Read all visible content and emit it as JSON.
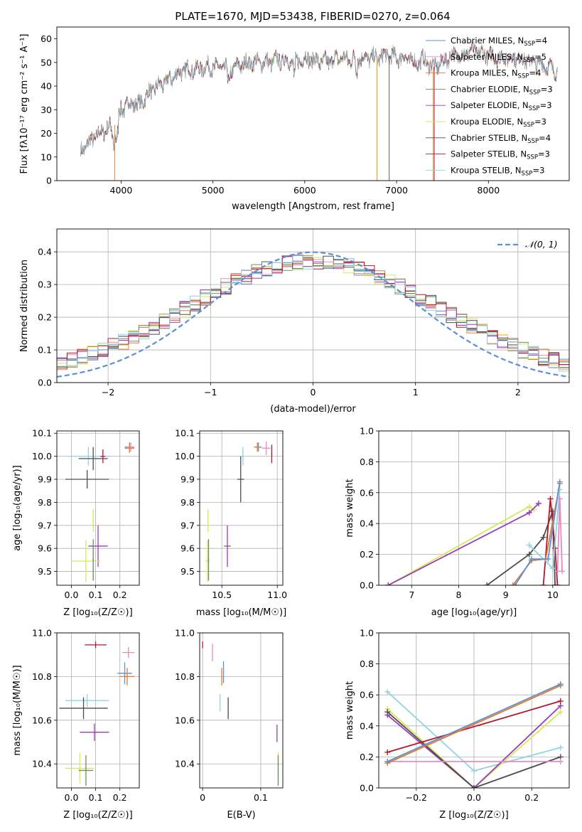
{
  "figure": {
    "title": "PLATE=1670, MJD=53438, FIBERID=0270, z=0.064"
  },
  "chart_data": [
    {
      "id": "spectrum",
      "type": "line",
      "title": "PLATE=1670, MJD=53438, FIBERID=0270, z=0.064",
      "xlabel": "wavelength [Angstrom, rest frame]",
      "ylabel": "Flux [fλ10⁻¹⁷ erg cm⁻² s⁻¹ A⁻¹]",
      "xlim": [
        3300,
        8880
      ],
      "ylim": [
        0,
        65
      ],
      "xticks": [
        4000,
        5000,
        6000,
        7000,
        8000
      ],
      "yticks": [
        0,
        10,
        20,
        30,
        40,
        50,
        60
      ],
      "grid": false,
      "legend_position": "top-right",
      "series": [
        {
          "name": "Chabrier MILES, N_SSP=4",
          "color": "#5b8fd6"
        },
        {
          "name": "Salpeter MILES, N_SSP=5",
          "color": "#e78ac3"
        },
        {
          "name": "Kroupa MILES, N_SSP=4",
          "color": "#e07b2e"
        },
        {
          "name": "Chabrier ELODIE, N_SSP=3",
          "color": "#6b8f5e"
        },
        {
          "name": "Salpeter ELODIE, N_SSP=3",
          "color": "#9b3cb7"
        },
        {
          "name": "Kroupa ELODIE, N_SSP=3",
          "color": "#d6e85a"
        },
        {
          "name": "Chabrier STELIB, N_SSP=4",
          "color": "#4d4d4d"
        },
        {
          "name": "Salpeter STELIB, N_SSP=3",
          "color": "#b2182b"
        },
        {
          "name": "Kroupa STELIB, N_SSP=3",
          "color": "#8fd4e0"
        }
      ],
      "continuum_x": [
        3550,
        3700,
        3850,
        3950,
        4000,
        4100,
        4200,
        4300,
        4400,
        4500,
        4600,
        4700,
        4800,
        4900,
        5000,
        5100,
        5200,
        5300,
        5400,
        5500,
        5600,
        5700,
        5800,
        5900,
        6000,
        6100,
        6200,
        6300,
        6400,
        6500,
        6600,
        6700,
        6800,
        6900,
        7000,
        7100,
        7200,
        7300,
        7400,
        7500,
        7600,
        7700,
        7800,
        7900,
        8000,
        8100,
        8200,
        8300,
        8400,
        8500,
        8600,
        8700
      ],
      "continuum_y": [
        12,
        18,
        22,
        24,
        30,
        33,
        32,
        37,
        40,
        42,
        45,
        47,
        47,
        48,
        48,
        48,
        47,
        49,
        50,
        50,
        50,
        51,
        51,
        50,
        52,
        51,
        50,
        51,
        52,
        51,
        52,
        52,
        52,
        53,
        52,
        52,
        50,
        51,
        48,
        50,
        53,
        53,
        55,
        54,
        53,
        52,
        52,
        52,
        51,
        50,
        49,
        47
      ]
    },
    {
      "id": "residuals",
      "type": "step",
      "xlabel": "(data-model)/error",
      "ylabel": "Normed distribution",
      "xlim": [
        -2.5,
        2.5
      ],
      "ylim": [
        0,
        0.47
      ],
      "xticks": [
        -2,
        -1,
        0,
        1,
        2
      ],
      "xtick_labels": [
        "−2",
        "−1",
        "0",
        "1",
        "2"
      ],
      "yticks": [
        0.0,
        0.1,
        0.2,
        0.3,
        0.4
      ],
      "grid": true,
      "legend_position": "top-right",
      "reference_curve": {
        "name": "𝒩(0, 1)",
        "mean": 0,
        "sigma": 1,
        "color": "#5b8fd6",
        "style": "dashed"
      },
      "bin_width": 0.1
    },
    {
      "id": "age-vs-Z",
      "type": "errorbar",
      "xlabel": "Z [log₁₀(Z/Z☉)]",
      "ylabel": "age  [log₁₀(age/yr)]",
      "xlim": [
        -0.06,
        0.28
      ],
      "ylim": [
        9.44,
        10.11
      ],
      "xticks": [
        0.0,
        0.1,
        0.2
      ],
      "xtick_labels": [
        "0.0",
        "0.1",
        "0.2"
      ],
      "yticks": [
        9.5,
        9.6,
        9.7,
        9.8,
        9.9,
        10.0,
        10.1
      ],
      "grid": true,
      "points": [
        {
          "color": "#8fd4e0",
          "x": 0.07,
          "xerr": 0.09,
          "y": 10.0,
          "yerr": 0.04
        },
        {
          "color": "#4d4d4d",
          "x": 0.09,
          "xerr": 0.06,
          "y": 9.99,
          "yerr": 0.05
        },
        {
          "color": "#b2182b",
          "x": 0.13,
          "xerr": 0.01,
          "y": 10.0,
          "yerr": 0.03
        },
        {
          "color": "#5b8fd6",
          "x": 0.24,
          "xerr": 0.02,
          "y": 10.04,
          "yerr": 0.02
        },
        {
          "color": "#e78ac3",
          "x": 0.245,
          "xerr": 0.015,
          "y": 10.04,
          "yerr": 0.02
        },
        {
          "color": "#e07b2e",
          "x": 0.24,
          "xerr": 0.02,
          "y": 10.035,
          "yerr": 0.02
        },
        {
          "color": "#4d4d4d",
          "x": 0.065,
          "xerr": 0.09,
          "y": 9.9,
          "yerr": 0.04
        },
        {
          "color": "#d6e85a",
          "x": 0.09,
          "xerr": 0.003,
          "y": 9.72,
          "yerr": 0.05
        },
        {
          "color": "#9b3cb7",
          "x": 0.11,
          "xerr": 0.04,
          "y": 9.61,
          "yerr": 0.09
        },
        {
          "color": "#d6e85a",
          "x": 0.06,
          "xerr": 0.06,
          "y": 9.545,
          "yerr": 0.09
        },
        {
          "color": "#6b8f5e",
          "x": 0.09,
          "xerr": 0.003,
          "y": 9.55,
          "yerr": 0.09
        }
      ]
    },
    {
      "id": "age-vs-mass",
      "type": "errorbar",
      "xlabel": "mass [log₁₀(M/M☉)]",
      "ylabel": "",
      "xlim": [
        10.3,
        11.05
      ],
      "ylim": [
        9.44,
        10.11
      ],
      "xticks": [
        10.5,
        11.0
      ],
      "xtick_labels": [
        "10.5",
        "11.0"
      ],
      "yticks": [
        9.5,
        9.6,
        9.7,
        9.8,
        9.9,
        10.0,
        10.1
      ],
      "grid": true,
      "points": [
        {
          "color": "#8fd4e0",
          "x": 10.69,
          "xerr": 0.01,
          "y": 10.0,
          "yerr": 0.04
        },
        {
          "color": "#4d4d4d",
          "x": 10.67,
          "xerr": 0.03,
          "y": 9.9,
          "yerr": 0.1
        },
        {
          "color": "#b2182b",
          "x": 10.95,
          "xerr": 0.005,
          "y": 10.01,
          "yerr": 0.04
        },
        {
          "color": "#5b8fd6",
          "x": 10.83,
          "xerr": 0.03,
          "y": 10.04,
          "yerr": 0.02
        },
        {
          "color": "#e78ac3",
          "x": 10.9,
          "xerr": 0.04,
          "y": 10.035,
          "yerr": 0.03
        },
        {
          "color": "#e07b2e",
          "x": 10.82,
          "xerr": 0.03,
          "y": 10.04,
          "yerr": 0.02
        },
        {
          "color": "#d6e85a",
          "x": 10.375,
          "xerr": 0.005,
          "y": 9.72,
          "yerr": 0.05
        },
        {
          "color": "#9b3cb7",
          "x": 10.55,
          "xerr": 0.03,
          "y": 9.61,
          "yerr": 0.09
        },
        {
          "color": "#d6e85a",
          "x": 10.37,
          "xerr": 0.02,
          "y": 9.545,
          "yerr": 0.09
        },
        {
          "color": "#6b8f5e",
          "x": 10.38,
          "xerr": 0.005,
          "y": 9.55,
          "yerr": 0.09
        }
      ]
    },
    {
      "id": "weight-vs-age",
      "type": "line",
      "xlabel": "age  [log₁₀(age/yr)]",
      "ylabel": "mass weight",
      "xlim": [
        6.3,
        10.35
      ],
      "ylim": [
        0,
        1.0
      ],
      "xticks": [
        7,
        8,
        9,
        10
      ],
      "yticks": [
        0.0,
        0.2,
        0.4,
        0.6,
        0.8,
        1.0
      ],
      "grid": true,
      "series": [
        {
          "color": "#d6e85a",
          "x": [
            6.5,
            9.5,
            9.6
          ],
          "y": [
            0.0,
            0.51,
            0.49
          ]
        },
        {
          "color": "#9b3cb7",
          "x": [
            6.5,
            9.5,
            9.7
          ],
          "y": [
            0.0,
            0.47,
            0.53
          ]
        },
        {
          "color": "#4d4d4d",
          "x": [
            8.6,
            9.5,
            9.8,
            10.0,
            10.05
          ],
          "y": [
            0.0,
            0.2,
            0.31,
            0.48,
            0.0
          ]
        },
        {
          "color": "#b2182b",
          "x": [
            9.8,
            9.95,
            10.05,
            10.1
          ],
          "y": [
            0.0,
            0.56,
            0.24,
            0.0
          ]
        },
        {
          "color": "#8fd4e0",
          "x": [
            9.5,
            10.0,
            10.15
          ],
          "y": [
            0.26,
            0.11,
            0.62
          ]
        },
        {
          "color": "#e07b2e",
          "x": [
            9.15,
            9.55,
            9.85,
            10.15
          ],
          "y": [
            0.0,
            0.16,
            0.17,
            0.66
          ]
        },
        {
          "color": "#5b8fd6",
          "x": [
            9.2,
            9.55,
            9.9,
            10.15
          ],
          "y": [
            0.0,
            0.17,
            0.17,
            0.67
          ]
        },
        {
          "color": "#e78ac3",
          "x": [
            10.1,
            10.15,
            10.2
          ],
          "y": [
            0.09,
            0.56,
            0.09
          ]
        }
      ]
    },
    {
      "id": "mass-vs-Z",
      "type": "errorbar",
      "xlabel": "Z [log₁₀(Z/Z☉)]",
      "ylabel": "mass [log₁₀(M/M☉)]",
      "xlim": [
        -0.06,
        0.28
      ],
      "ylim": [
        10.29,
        11.0
      ],
      "xticks": [
        0.0,
        0.1,
        0.2
      ],
      "xtick_labels": [
        "0.0",
        "0.1",
        "0.2"
      ],
      "yticks": [
        10.4,
        10.6,
        10.8,
        11.0
      ],
      "grid": true,
      "points": [
        {
          "color": "#b2182b",
          "x": 0.1,
          "xerr": 0.045,
          "y": 10.945,
          "yerr": 0.015
        },
        {
          "color": "#e78ac3",
          "x": 0.235,
          "xerr": 0.025,
          "y": 10.91,
          "yerr": 0.025
        },
        {
          "color": "#5b8fd6",
          "x": 0.22,
          "xerr": 0.03,
          "y": 10.815,
          "yerr": 0.05
        },
        {
          "color": "#e07b2e",
          "x": 0.23,
          "xerr": 0.03,
          "y": 10.8,
          "yerr": 0.04
        },
        {
          "color": "#8fd4e0",
          "x": 0.065,
          "xerr": 0.09,
          "y": 10.69,
          "yerr": 0.03
        },
        {
          "color": "#4d4d4d",
          "x": 0.05,
          "xerr": 0.1,
          "y": 10.655,
          "yerr": 0.05
        },
        {
          "color": "#9b3cb7",
          "x": 0.095,
          "xerr": 0.06,
          "y": 10.545,
          "yerr": 0.04
        },
        {
          "color": "#d6e85a",
          "x": 0.035,
          "xerr": 0.06,
          "y": 10.38,
          "yerr": 0.07
        },
        {
          "color": "#6b8f5e",
          "x": 0.06,
          "xerr": 0.03,
          "y": 10.37,
          "yerr": 0.07
        }
      ]
    },
    {
      "id": "mass-vs-EBV",
      "type": "errorbar",
      "xlabel": "E(B-V)",
      "ylabel": "",
      "xlim": [
        -0.005,
        0.138
      ],
      "ylim": [
        10.29,
        11.0
      ],
      "xticks": [
        0.0,
        0.1
      ],
      "xtick_labels": [
        "0",
        "0.1"
      ],
      "yticks": [
        10.4,
        10.6,
        10.8,
        11.0
      ],
      "grid": true,
      "points": [
        {
          "color": "#b2182b",
          "x": 0.0,
          "y": 10.945,
          "yerr": 0.015
        },
        {
          "color": "#e78ac3",
          "x": 0.017,
          "y": 10.91,
          "yerr": 0.04
        },
        {
          "color": "#5b8fd6",
          "x": 0.036,
          "y": 10.82,
          "yerr": 0.05
        },
        {
          "color": "#e07b2e",
          "x": 0.033,
          "y": 10.8,
          "yerr": 0.04
        },
        {
          "color": "#8fd4e0",
          "x": 0.03,
          "y": 10.68,
          "yerr": 0.04
        },
        {
          "color": "#4d4d4d",
          "x": 0.044,
          "y": 10.655,
          "yerr": 0.05
        },
        {
          "color": "#9b3cb7",
          "x": 0.128,
          "y": 10.54,
          "yerr": 0.04
        },
        {
          "color": "#d6e85a",
          "x": 0.13,
          "y": 10.385,
          "yerr": 0.07
        },
        {
          "color": "#6b8f5e",
          "x": 0.13,
          "y": 10.37,
          "yerr": 0.07
        }
      ]
    },
    {
      "id": "weight-vs-Z",
      "type": "line",
      "xlabel": "Z [log₁₀(Z/Z☉)]",
      "ylabel": "mass weight",
      "xlim": [
        -0.33,
        0.33
      ],
      "ylim": [
        0,
        1.0
      ],
      "xticks": [
        -0.2,
        0.0,
        0.2
      ],
      "xtick_labels": [
        "−0.2",
        "0.0",
        "0.2"
      ],
      "yticks": [
        0.0,
        0.2,
        0.4,
        0.6,
        0.8,
        1.0
      ],
      "grid": true,
      "series": [
        {
          "color": "#8fd4e0",
          "x": [
            -0.3,
            0.0,
            0.3
          ],
          "y": [
            0.62,
            0.11,
            0.26
          ]
        },
        {
          "color": "#d6e85a",
          "x": [
            -0.3,
            0.0,
            0.3
          ],
          "y": [
            0.51,
            0.0,
            0.49
          ]
        },
        {
          "color": "#9b3cb7",
          "x": [
            -0.3,
            0.0,
            0.3
          ],
          "y": [
            0.47,
            0.0,
            0.53
          ]
        },
        {
          "color": "#4d4d4d",
          "x": [
            -0.3,
            0.0,
            0.3
          ],
          "y": [
            0.49,
            0.0,
            0.2
          ]
        },
        {
          "color": "#b2182b",
          "x": [
            -0.3,
            0.3
          ],
          "y": [
            0.23,
            0.56
          ]
        },
        {
          "color": "#e78ac3",
          "x": [
            -0.3,
            0.3
          ],
          "y": [
            0.17,
            0.17
          ]
        },
        {
          "color": "#e07b2e",
          "x": [
            -0.3,
            0.3
          ],
          "y": [
            0.16,
            0.66
          ]
        },
        {
          "color": "#5b8fd6",
          "x": [
            -0.3,
            0.3
          ],
          "y": [
            0.17,
            0.67
          ]
        }
      ]
    }
  ]
}
